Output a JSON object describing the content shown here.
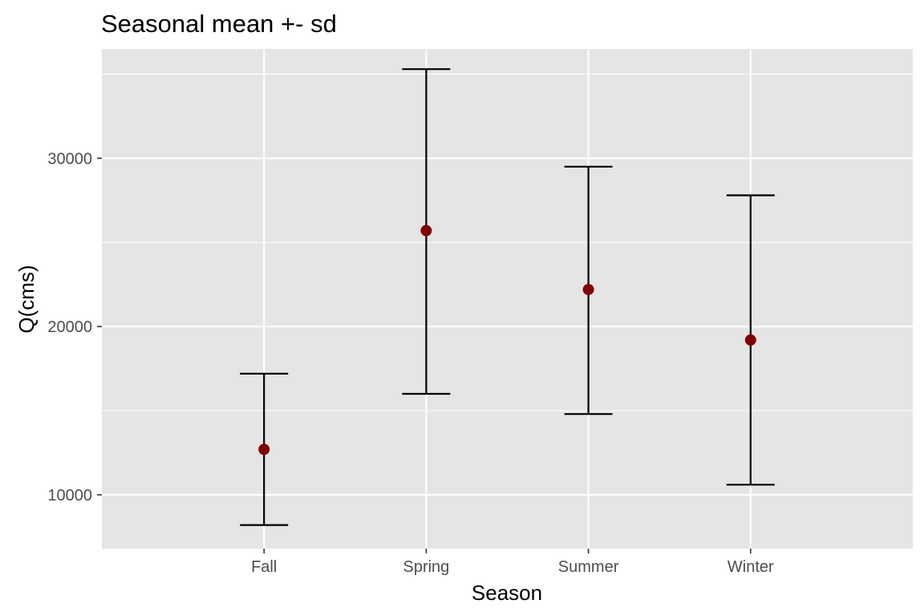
{
  "chart_data": {
    "type": "scatter",
    "title": "Seasonal mean +- sd",
    "xlabel": "Season",
    "ylabel": "Q(cms)",
    "categories": [
      "Fall",
      "Spring",
      "Summer",
      "Winter"
    ],
    "series": [
      {
        "mean": [
          12700,
          25700,
          22200,
          19200
        ],
        "lower": [
          8200,
          16000,
          14800,
          10600
        ],
        "upper": [
          17200,
          35300,
          29500,
          27800
        ]
      }
    ],
    "y_ticks": [
      10000,
      20000,
      30000
    ],
    "y_tick_labels": [
      "10000",
      "20000",
      "30000"
    ],
    "ylim": [
      6800,
      36500
    ],
    "grid": true,
    "colors": {
      "panel_background": "#e5e5e5",
      "grid": "#ffffff",
      "point": "#7f0000",
      "errorbar": "#000000"
    }
  }
}
